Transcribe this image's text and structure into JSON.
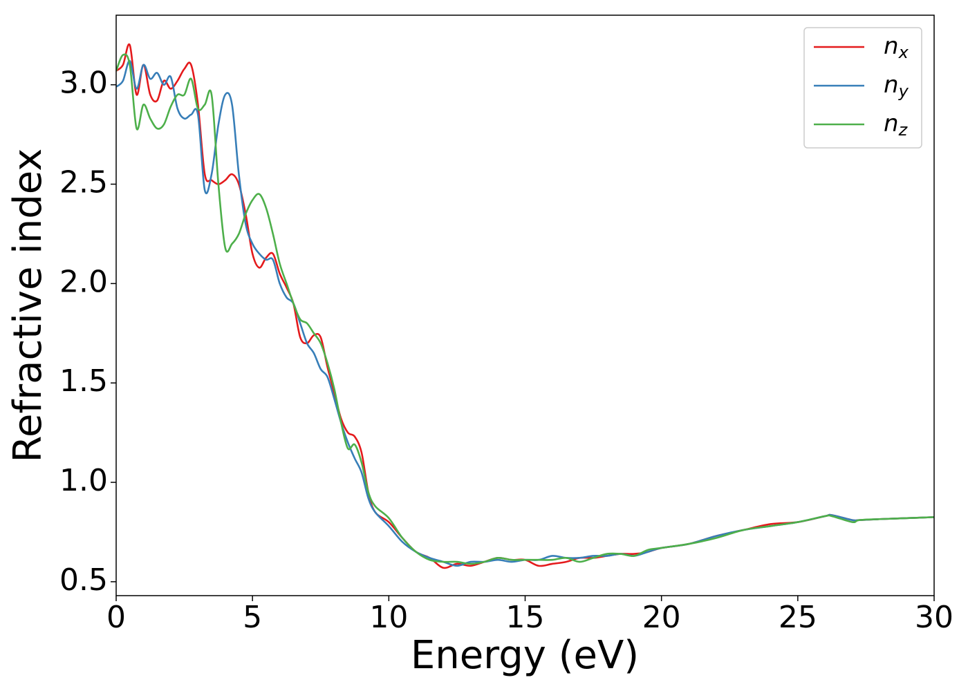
{
  "chart_data": {
    "type": "line",
    "xlabel": "Energy (eV)",
    "ylabel": "Refractive index",
    "xlim": [
      0,
      30
    ],
    "ylim": [
      0.43,
      3.35
    ],
    "xticks": [
      0,
      5,
      10,
      15,
      20,
      25,
      30
    ],
    "yticks": [
      0.5,
      {
        "value": 1,
        "label": "1.0"
      },
      1.5,
      {
        "value": 2,
        "label": "2.0"
      },
      2.5,
      {
        "value": 3,
        "label": "3.0"
      }
    ],
    "legend": "upper right",
    "x": [
      0,
      0.25,
      0.5,
      0.75,
      1,
      1.25,
      1.5,
      1.75,
      2,
      2.25,
      2.5,
      2.75,
      3,
      3.25,
      3.5,
      3.75,
      4,
      4.25,
      4.5,
      4.75,
      5,
      5.25,
      5.5,
      5.75,
      6,
      6.25,
      6.5,
      6.75,
      7,
      7.25,
      7.5,
      7.75,
      8,
      8.25,
      8.5,
      8.75,
      9,
      9.25,
      9.5,
      10,
      10.5,
      11,
      11.5,
      12,
      12.5,
      13,
      13.5,
      14,
      14.5,
      15,
      15.5,
      16,
      16.5,
      17,
      17.5,
      18,
      18.5,
      19,
      19.5,
      20,
      21,
      22,
      23,
      24,
      25,
      26,
      26.25,
      27,
      27.25,
      28,
      29,
      30
    ],
    "series": [
      {
        "name": "nx",
        "color": "#e41a1c",
        "values": [
          3.07,
          3.1,
          3.2,
          2.95,
          3.1,
          2.95,
          2.92,
          3.02,
          2.98,
          3.02,
          3.08,
          3.1,
          2.9,
          2.55,
          2.52,
          2.5,
          2.52,
          2.55,
          2.5,
          2.35,
          2.15,
          2.08,
          2.13,
          2.15,
          2.05,
          1.98,
          1.9,
          1.73,
          1.7,
          1.74,
          1.73,
          1.58,
          1.45,
          1.32,
          1.25,
          1.23,
          1.15,
          0.95,
          0.85,
          0.8,
          0.72,
          0.65,
          0.62,
          0.57,
          0.59,
          0.58,
          0.6,
          0.62,
          0.61,
          0.61,
          0.58,
          0.59,
          0.6,
          0.62,
          0.62,
          0.63,
          0.64,
          0.64,
          0.65,
          0.67,
          0.69,
          0.73,
          0.76,
          0.79,
          0.8,
          0.83,
          0.835,
          0.81,
          0.81,
          0.815,
          0.82,
          0.825
        ]
      },
      {
        "name": "ny",
        "color": "#377eb8",
        "values": [
          2.99,
          3.02,
          3.12,
          2.98,
          3.1,
          3.03,
          3.06,
          3.0,
          3.04,
          2.88,
          2.83,
          2.85,
          2.85,
          2.47,
          2.55,
          2.8,
          2.95,
          2.9,
          2.55,
          2.3,
          2.2,
          2.15,
          2.12,
          2.12,
          2.0,
          1.93,
          1.9,
          1.8,
          1.7,
          1.65,
          1.57,
          1.53,
          1.42,
          1.3,
          1.2,
          1.12,
          1.05,
          0.92,
          0.85,
          0.78,
          0.7,
          0.65,
          0.62,
          0.6,
          0.58,
          0.6,
          0.6,
          0.61,
          0.6,
          0.61,
          0.61,
          0.63,
          0.62,
          0.62,
          0.63,
          0.63,
          0.64,
          0.63,
          0.65,
          0.67,
          0.69,
          0.73,
          0.76,
          0.78,
          0.8,
          0.83,
          0.835,
          0.81,
          0.81,
          0.815,
          0.82,
          0.825
        ]
      },
      {
        "name": "nz",
        "color": "#4daf4a",
        "values": [
          3.07,
          3.15,
          3.1,
          2.78,
          2.9,
          2.83,
          2.78,
          2.8,
          2.89,
          2.95,
          2.95,
          3.03,
          2.88,
          2.9,
          2.95,
          2.5,
          2.18,
          2.2,
          2.25,
          2.35,
          2.42,
          2.45,
          2.38,
          2.25,
          2.1,
          2.0,
          1.9,
          1.82,
          1.8,
          1.75,
          1.7,
          1.6,
          1.47,
          1.3,
          1.17,
          1.19,
          1.1,
          0.95,
          0.88,
          0.82,
          0.72,
          0.65,
          0.61,
          0.6,
          0.6,
          0.59,
          0.6,
          0.62,
          0.61,
          0.61,
          0.61,
          0.61,
          0.62,
          0.6,
          0.62,
          0.64,
          0.64,
          0.63,
          0.66,
          0.67,
          0.69,
          0.72,
          0.76,
          0.78,
          0.8,
          0.83,
          0.83,
          0.8,
          0.81,
          0.815,
          0.82,
          0.825
        ]
      }
    ]
  }
}
